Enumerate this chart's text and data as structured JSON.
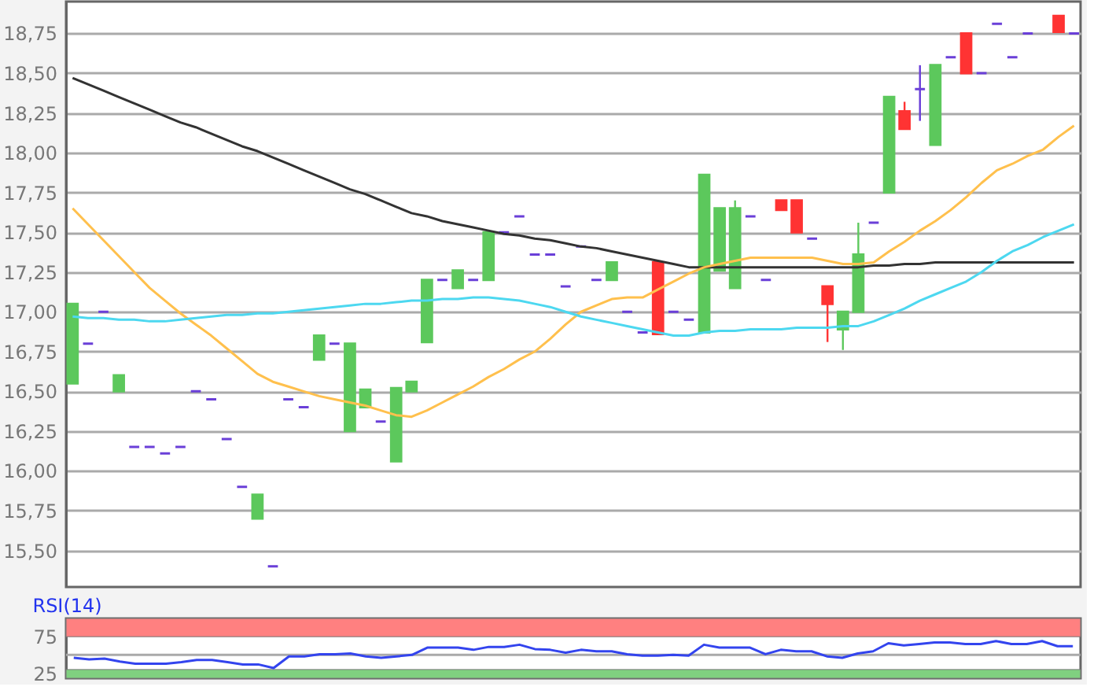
{
  "chart_data": [
    {
      "type": "candlestick",
      "categories": [
        null,
        null,
        null,
        null,
        null,
        null,
        null,
        null,
        null,
        null,
        null,
        null,
        null,
        null,
        null,
        null,
        null,
        null,
        null,
        null,
        null,
        null,
        null,
        null,
        null,
        null,
        null,
        null,
        null,
        null,
        null,
        null,
        null,
        null,
        null,
        null,
        null,
        null,
        null,
        null,
        null,
        null,
        null,
        null,
        null,
        null,
        null,
        null,
        null,
        null,
        null,
        null,
        null,
        null,
        null,
        null,
        null,
        null,
        null,
        null,
        null,
        null,
        null,
        null,
        null,
        null
      ],
      "ohlc": [
        [
          16.55,
          17.05,
          16.55,
          17.05
        ],
        [
          16.8,
          16.8,
          16.8,
          16.8
        ],
        [
          17.0,
          17.0,
          17.0,
          17.0
        ],
        [
          16.5,
          16.6,
          16.5,
          16.6
        ],
        [
          16.15,
          16.15,
          16.15,
          16.15
        ],
        [
          16.15,
          16.15,
          16.15,
          16.15
        ],
        [
          16.11,
          16.11,
          16.11,
          16.11
        ],
        [
          16.15,
          16.15,
          16.15,
          16.15
        ],
        [
          16.5,
          16.5,
          16.5,
          16.5
        ],
        [
          16.45,
          16.45,
          16.45,
          16.45
        ],
        [
          16.2,
          16.2,
          16.2,
          16.2
        ],
        [
          15.9,
          15.9,
          15.9,
          15.9
        ],
        [
          15.7,
          15.85,
          15.7,
          15.85
        ],
        [
          15.4,
          15.4,
          15.4,
          15.4
        ],
        [
          16.45,
          16.45,
          16.45,
          16.45
        ],
        [
          16.4,
          16.4,
          16.4,
          16.4
        ],
        [
          16.7,
          16.85,
          16.7,
          16.85
        ],
        [
          16.8,
          16.8,
          16.8,
          16.8
        ],
        [
          16.25,
          16.8,
          16.25,
          16.8
        ],
        [
          16.4,
          16.51,
          16.4,
          16.51
        ],
        [
          16.31,
          16.31,
          16.31,
          16.31
        ],
        [
          16.06,
          16.52,
          16.06,
          16.52
        ],
        [
          16.5,
          16.56,
          16.5,
          16.56
        ],
        [
          16.81,
          17.2,
          16.81,
          17.2
        ],
        [
          17.2,
          17.2,
          17.2,
          17.2
        ],
        [
          17.15,
          17.26,
          17.15,
          17.26
        ],
        [
          17.2,
          17.2,
          17.2,
          17.2
        ],
        [
          17.2,
          17.5,
          17.2,
          17.5
        ],
        [
          17.5,
          17.5,
          17.5,
          17.5
        ],
        [
          17.6,
          17.6,
          17.6,
          17.6
        ],
        [
          17.36,
          17.36,
          17.36,
          17.36
        ],
        [
          17.36,
          17.36,
          17.36,
          17.36
        ],
        [
          17.16,
          17.16,
          17.16,
          17.16
        ],
        [
          17.41,
          17.41,
          17.41,
          17.41
        ],
        [
          17.2,
          17.2,
          17.2,
          17.2
        ],
        [
          17.2,
          17.31,
          17.2,
          17.31
        ],
        [
          17.0,
          17.0,
          17.0,
          17.0
        ],
        [
          16.87,
          16.87,
          16.87,
          16.87
        ],
        [
          17.31,
          17.31,
          16.86,
          16.86
        ],
        [
          17.0,
          17.0,
          17.0,
          17.0
        ],
        [
          16.95,
          16.95,
          16.95,
          16.95
        ],
        [
          16.87,
          17.86,
          16.87,
          17.86
        ],
        [
          17.26,
          17.65,
          17.26,
          17.65
        ],
        [
          17.15,
          17.7,
          17.15,
          17.65
        ],
        [
          17.6,
          17.6,
          17.6,
          17.6
        ],
        [
          17.2,
          17.2,
          17.2,
          17.2
        ],
        [
          17.7,
          17.7,
          17.64,
          17.64
        ],
        [
          17.7,
          17.7,
          17.5,
          17.5
        ],
        [
          17.46,
          17.46,
          17.46,
          17.46
        ],
        [
          17.16,
          17.16,
          16.81,
          17.05
        ],
        [
          16.89,
          17.0,
          16.76,
          17.0
        ],
        [
          17.0,
          17.56,
          17.0,
          17.36
        ],
        [
          17.56,
          17.56,
          17.56,
          17.56
        ],
        [
          17.75,
          18.35,
          17.75,
          18.35
        ],
        [
          18.26,
          18.32,
          18.15,
          18.15
        ],
        [
          18.4,
          18.55,
          18.2,
          18.4
        ],
        [
          18.05,
          18.55,
          18.05,
          18.55
        ],
        [
          18.6,
          18.6,
          18.6,
          18.6
        ],
        [
          18.75,
          18.75,
          18.5,
          18.5
        ],
        [
          18.5,
          18.5,
          18.5,
          18.5
        ],
        [
          18.81,
          18.81,
          18.81,
          18.81
        ],
        [
          18.6,
          18.6,
          18.6,
          18.6
        ],
        [
          18.75,
          18.75,
          18.75,
          18.75
        ],
        null,
        [
          18.86,
          18.86,
          18.76,
          18.76
        ],
        [
          18.75,
          18.75,
          18.75,
          18.75
        ]
      ],
      "colors": [
        "#5cc85c",
        "#6a3fd8",
        "#6a3fd8",
        "#5cc85c",
        "#6a3fd8",
        "#6a3fd8",
        "#6a3fd8",
        "#6a3fd8",
        "#6a3fd8",
        "#6a3fd8",
        "#6a3fd8",
        "#6a3fd8",
        "#5cc85c",
        "#6a3fd8",
        "#6a3fd8",
        "#6a3fd8",
        "#5cc85c",
        "#6a3fd8",
        "#5cc85c",
        "#5cc85c",
        "#6a3fd8",
        "#5cc85c",
        "#5cc85c",
        "#5cc85c",
        "#6a3fd8",
        "#5cc85c",
        "#6a3fd8",
        "#5cc85c",
        "#6a3fd8",
        "#6a3fd8",
        "#6a3fd8",
        "#6a3fd8",
        "#6a3fd8",
        "#6a3fd8",
        "#6a3fd8",
        "#5cc85c",
        "#6a3fd8",
        "#6a3fd8",
        "#ff3333",
        "#6a3fd8",
        "#6a3fd8",
        "#5cc85c",
        "#5cc85c",
        "#5cc85c",
        "#6a3fd8",
        "#6a3fd8",
        "#ff3333",
        "#ff3333",
        "#6a3fd8",
        "#ff3333",
        "#5cc85c",
        "#5cc85c",
        "#6a3fd8",
        "#5cc85c",
        "#ff3333",
        "#6a3fd8",
        "#5cc85c",
        "#6a3fd8",
        "#ff3333",
        "#6a3fd8",
        "#6a3fd8",
        "#6a3fd8",
        "#6a3fd8",
        "#5cc85c",
        "#ff3333",
        "#6a3fd8"
      ],
      "series": [
        {
          "type": "line",
          "color": "#333333",
          "values": [
            18.47,
            18.43,
            18.39,
            18.35,
            18.31,
            18.27,
            18.23,
            18.19,
            18.16,
            18.12,
            18.08,
            18.04,
            18.01,
            17.97,
            17.93,
            17.89,
            17.85,
            17.81,
            17.77,
            17.74,
            17.7,
            17.66,
            17.62,
            17.6,
            17.57,
            17.55,
            17.53,
            17.51,
            17.49,
            17.48,
            17.46,
            17.45,
            17.43,
            17.41,
            17.4,
            17.38,
            17.36,
            17.34,
            17.32,
            17.3,
            17.28,
            17.28,
            17.28,
            17.28,
            17.28,
            17.28,
            17.28,
            17.28,
            17.28,
            17.28,
            17.28,
            17.28,
            17.29,
            17.29,
            17.3,
            17.3,
            17.31,
            17.31,
            17.31,
            17.31,
            17.31,
            17.31,
            17.31,
            17.31,
            17.31,
            17.31
          ]
        },
        {
          "type": "line",
          "color": "#ffc04d",
          "values": [
            17.65,
            17.55,
            17.45,
            17.35,
            17.25,
            17.15,
            17.07,
            16.99,
            16.92,
            16.85,
            16.77,
            16.69,
            16.61,
            16.56,
            16.53,
            16.5,
            16.47,
            16.45,
            16.43,
            16.41,
            16.38,
            16.35,
            16.34,
            16.38,
            16.43,
            16.48,
            16.53,
            16.59,
            16.64,
            16.7,
            16.75,
            16.83,
            16.92,
            17.0,
            17.04,
            17.08,
            17.09,
            17.09,
            17.14,
            17.19,
            17.24,
            17.28,
            17.3,
            17.32,
            17.34,
            17.34,
            17.34,
            17.34,
            17.34,
            17.32,
            17.3,
            17.3,
            17.31,
            17.38,
            17.44,
            17.51,
            17.57,
            17.64,
            17.72,
            17.81,
            17.89,
            17.93,
            17.98,
            18.02,
            18.1,
            18.17
          ]
        },
        {
          "type": "line",
          "color": "#4dd8f0",
          "values": [
            16.97,
            16.96,
            16.96,
            16.95,
            16.95,
            16.94,
            16.94,
            16.95,
            16.96,
            16.97,
            16.98,
            16.98,
            16.99,
            16.99,
            17.0,
            17.01,
            17.02,
            17.03,
            17.04,
            17.05,
            17.05,
            17.06,
            17.07,
            17.07,
            17.08,
            17.08,
            17.09,
            17.09,
            17.08,
            17.07,
            17.05,
            17.03,
            17.0,
            16.97,
            16.95,
            16.93,
            16.91,
            16.89,
            16.87,
            16.85,
            16.85,
            16.87,
            16.88,
            16.88,
            16.89,
            16.89,
            16.89,
            16.9,
            16.9,
            16.9,
            16.91,
            16.91,
            16.94,
            16.98,
            17.02,
            17.07,
            17.11,
            17.15,
            17.19,
            17.25,
            17.32,
            17.38,
            17.42,
            17.47,
            17.51,
            17.55
          ]
        }
      ],
      "ylim": [
        15.27,
        18.95
      ],
      "yticks": [
        {
          "value": 15.5,
          "label": "15,50"
        },
        {
          "value": 15.75,
          "label": "15,75"
        },
        {
          "value": 16.0,
          "label": "16,00"
        },
        {
          "value": 16.25,
          "label": "16,25"
        },
        {
          "value": 16.5,
          "label": "16,50"
        },
        {
          "value": 16.75,
          "label": "16,75"
        },
        {
          "value": 17.0,
          "label": "17,00"
        },
        {
          "value": 17.25,
          "label": "17,25"
        },
        {
          "value": 17.5,
          "label": "17,50"
        },
        {
          "value": 17.75,
          "label": "17,75"
        },
        {
          "value": 18.0,
          "label": "18,00"
        },
        {
          "value": 18.25,
          "label": "18,25"
        },
        {
          "value": 18.5,
          "label": "18,50"
        },
        {
          "value": 18.75,
          "label": "18,75"
        }
      ],
      "grid": "y"
    },
    {
      "type": "line",
      "title": "RSI(14)",
      "categories": [
        null,
        null,
        null,
        null,
        null,
        null,
        null,
        null,
        null,
        null,
        null,
        null,
        null,
        null,
        null,
        null,
        null,
        null,
        null,
        null,
        null,
        null,
        null,
        null,
        null,
        null,
        null,
        null,
        null,
        null,
        null,
        null,
        null,
        null,
        null,
        null,
        null,
        null,
        null,
        null,
        null,
        null,
        null,
        null,
        null,
        null,
        null,
        null,
        null,
        null,
        null,
        null,
        null,
        null,
        null,
        null,
        null,
        null,
        null,
        null,
        null,
        null,
        null,
        null,
        null,
        null
      ],
      "series": [
        {
          "color": "#3344ee",
          "values": [
            46,
            44,
            45,
            41,
            38,
            38,
            38,
            40,
            43,
            43,
            40,
            37,
            37,
            32,
            48,
            48,
            51,
            51,
            52,
            48,
            46,
            48,
            50,
            60,
            60,
            60,
            57,
            61,
            61,
            64,
            58,
            57,
            53,
            57,
            55,
            55,
            51,
            49,
            49,
            50,
            49,
            64,
            60,
            60,
            60,
            51,
            57,
            55,
            55,
            48,
            46,
            52,
            55,
            66,
            63,
            65,
            67,
            67,
            65,
            65,
            69,
            65,
            65,
            69,
            62,
            62
          ]
        }
      ],
      "ylim": [
        18,
        100
      ],
      "yticks": [
        25,
        75
      ],
      "bands": [
        {
          "axis": "y",
          "from": 75,
          "to": 100,
          "color": "#ff8080"
        },
        {
          "axis": "y",
          "from": 18,
          "to": 30,
          "color": "#80d080"
        }
      ],
      "ref_lines": [
        {
          "axis": "y",
          "value": 50,
          "color": "#aaaaaa"
        }
      ]
    }
  ]
}
